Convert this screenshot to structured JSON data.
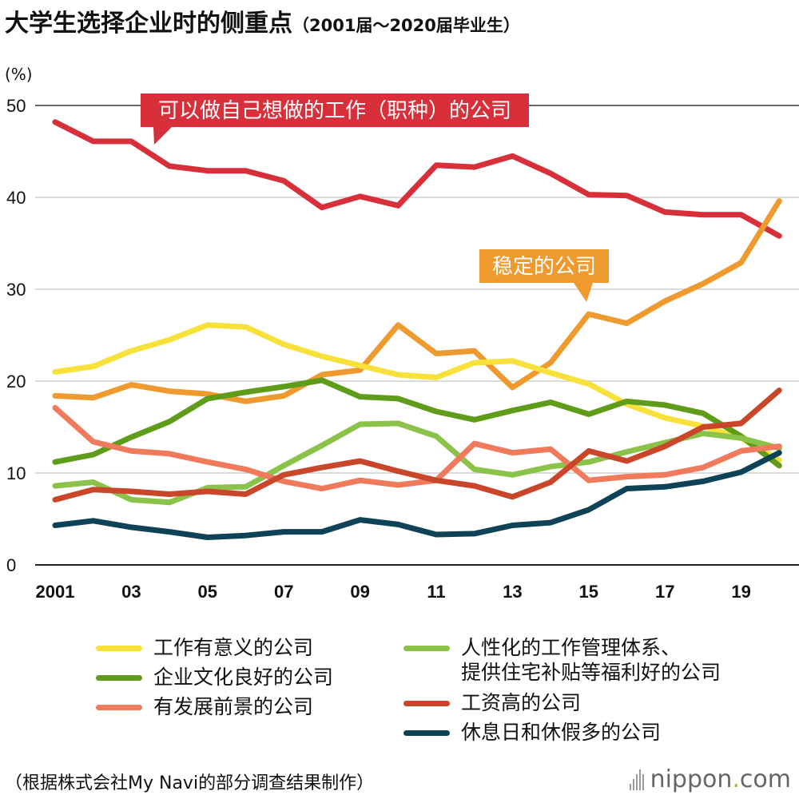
{
  "title": {
    "main": "大学生选择企业时的侧重点",
    "sub": "（2001届～2020届毕业生）"
  },
  "chart_data": {
    "type": "line",
    "y_unit_label": "(%)",
    "ylim": [
      0,
      50
    ],
    "y_ticks": [
      0,
      10,
      20,
      30,
      40,
      50
    ],
    "x": [
      2001,
      2002,
      2003,
      2004,
      2005,
      2006,
      2007,
      2008,
      2009,
      2010,
      2011,
      2012,
      2013,
      2014,
      2015,
      2016,
      2017,
      2018,
      2019,
      2020
    ],
    "x_tick_labels": [
      {
        "x": 2001,
        "label": "2001"
      },
      {
        "x": 2003,
        "label": "03"
      },
      {
        "x": 2005,
        "label": "05"
      },
      {
        "x": 2007,
        "label": "07"
      },
      {
        "x": 2009,
        "label": "09"
      },
      {
        "x": 2011,
        "label": "11"
      },
      {
        "x": 2013,
        "label": "13"
      },
      {
        "x": 2015,
        "label": "15"
      },
      {
        "x": 2017,
        "label": "17"
      },
      {
        "x": 2019,
        "label": "19"
      }
    ],
    "grid": true,
    "series": [
      {
        "name": "可以做自己想做的工作（职种）的公司",
        "color": "#d7303a",
        "values": [
          48.2,
          46.1,
          46.1,
          43.4,
          42.9,
          42.9,
          41.8,
          38.9,
          40.1,
          39.1,
          43.5,
          43.3,
          44.5,
          42.6,
          40.3,
          40.2,
          38.4,
          38.1,
          38.1,
          35.8
        ]
      },
      {
        "name": "稳定的公司",
        "color": "#ee9a2e",
        "values": [
          18.4,
          18.2,
          19.6,
          18.9,
          18.6,
          17.8,
          18.4,
          20.7,
          21.2,
          26.1,
          23.0,
          23.3,
          19.3,
          22.0,
          27.3,
          26.3,
          28.7,
          30.6,
          32.9,
          39.6
        ]
      },
      {
        "name": "工作有意义的公司",
        "color": "#f7e13a",
        "values": [
          21.0,
          21.6,
          23.3,
          24.5,
          26.1,
          25.9,
          24.0,
          22.7,
          21.7,
          20.7,
          20.4,
          22.0,
          22.2,
          20.9,
          19.7,
          17.5,
          16.0,
          15.1,
          13.8,
          11.4
        ]
      },
      {
        "name": "企业文化良好的公司",
        "color": "#5e9c1a",
        "values": [
          11.2,
          12.0,
          13.9,
          15.6,
          18.1,
          18.8,
          19.4,
          20.1,
          18.3,
          18.1,
          16.7,
          15.8,
          16.8,
          17.7,
          16.4,
          17.8,
          17.4,
          16.5,
          14.0,
          10.8
        ]
      },
      {
        "name": "人性化的工作管理体系、提供住宅补贴等福利好的公司",
        "color": "#8bc34a",
        "values": [
          8.6,
          9.0,
          7.1,
          6.8,
          8.4,
          8.5,
          10.8,
          13.0,
          15.3,
          15.4,
          14.0,
          10.4,
          9.8,
          10.7,
          11.2,
          12.3,
          13.3,
          14.3,
          13.8,
          12.7
        ]
      },
      {
        "name": "有发展前景的公司",
        "color": "#f07a5c",
        "values": [
          17.1,
          13.4,
          12.4,
          12.1,
          11.2,
          10.4,
          9.1,
          8.3,
          9.2,
          8.7,
          9.2,
          13.2,
          12.2,
          12.6,
          9.2,
          9.6,
          9.8,
          10.6,
          12.4,
          12.9
        ]
      },
      {
        "name": "工资高的公司",
        "color": "#c9462a",
        "values": [
          7.1,
          8.2,
          8.0,
          7.7,
          8.0,
          7.7,
          9.8,
          10.6,
          11.3,
          10.2,
          9.2,
          8.6,
          7.4,
          9.0,
          12.4,
          11.3,
          12.9,
          15.0,
          15.4,
          19.0
        ]
      },
      {
        "name": "休息日和休假多的公司",
        "color": "#0e4357",
        "values": [
          4.3,
          4.8,
          4.1,
          3.6,
          3.0,
          3.2,
          3.6,
          3.6,
          4.9,
          4.4,
          3.3,
          3.4,
          4.3,
          4.6,
          6.0,
          8.3,
          8.5,
          9.1,
          10.1,
          12.2
        ]
      }
    ],
    "annotations": [
      {
        "text": "可以做自己想做的工作（职种）的公司",
        "color": "#d7303a",
        "points_to": {
          "x": 2003.6,
          "y": 44.6
        }
      },
      {
        "text": "稳定的公司",
        "color": "#ee9a2e",
        "points_to": {
          "x": 2014.9,
          "y": 28.3
        }
      }
    ]
  },
  "legend": [
    {
      "label": "工作有意义的公司",
      "color": "#f7e13a"
    },
    {
      "label": "企业文化良好的公司",
      "color": "#5e9c1a"
    },
    {
      "label": "有发展前景的公司",
      "color": "#f07a5c"
    },
    {
      "label": "人性化的工作管理体系、",
      "label2": "提供住宅补贴等福利好的公司",
      "color": "#8bc34a"
    },
    {
      "label": "工资高的公司",
      "color": "#c9462a"
    },
    {
      "label": "休息日和休假多的公司",
      "color": "#0e4357"
    }
  ],
  "footer": {
    "source": "（根据株式会社My Navi的部分调查结果制作）",
    "logo_main": "nippon",
    "logo_accent": ".",
    "logo_tail": "com"
  }
}
